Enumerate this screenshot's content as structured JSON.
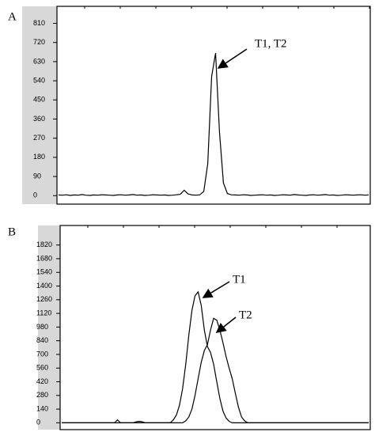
{
  "chart_data": [
    {
      "type": "line",
      "label": "A",
      "annotations": [
        "T1, T2"
      ],
      "ylim": [
        -40,
        890
      ],
      "yticks": [
        0,
        90,
        180,
        270,
        360,
        450,
        540,
        630,
        720,
        810
      ],
      "series": [
        {
          "color": "#000000",
          "values": [
            3,
            2,
            4,
            1,
            3,
            2,
            5,
            2,
            1,
            3,
            2,
            4,
            3,
            2,
            1,
            3,
            4,
            2,
            3,
            5,
            2,
            3,
            1,
            2,
            4,
            3,
            2,
            3,
            1,
            2,
            4,
            6,
            25,
            8,
            3,
            2,
            4,
            20,
            150,
            560,
            670,
            300,
            60,
            10,
            4,
            3,
            2,
            4,
            3,
            1,
            2,
            3,
            4,
            2,
            3,
            1,
            2,
            4,
            3,
            2,
            5,
            3,
            2,
            1,
            3,
            4,
            2,
            3,
            5,
            2,
            3,
            1,
            2,
            4,
            3,
            2,
            3,
            4,
            2,
            3
          ]
        }
      ]
    },
    {
      "type": "line",
      "label": "B",
      "annotations": [
        "T1",
        "T2"
      ],
      "ylim": [
        -70,
        2020
      ],
      "yticks": [
        0,
        140,
        280,
        420,
        560,
        700,
        840,
        980,
        1120,
        1260,
        1400,
        1540,
        1680,
        1820
      ],
      "series": [
        {
          "color": "#000000",
          "values": [
            0,
            0,
            0,
            0,
            0,
            0,
            0,
            0,
            0,
            0,
            0,
            0,
            0,
            0,
            0,
            0,
            0,
            0,
            30,
            0,
            0,
            0,
            0,
            0,
            10,
            15,
            10,
            0,
            0,
            0,
            0,
            0,
            0,
            0,
            0,
            0,
            30,
            80,
            180,
            350,
            600,
            900,
            1150,
            1300,
            1340,
            1200,
            950,
            780,
            720,
            600,
            420,
            250,
            120,
            50,
            15,
            0,
            0,
            0,
            0,
            0,
            0,
            0,
            0,
            0,
            0,
            0,
            0,
            0,
            0,
            0,
            0,
            0,
            0,
            0,
            0,
            0,
            0,
            0,
            0,
            0,
            0,
            0,
            0,
            0,
            0,
            0,
            0,
            0,
            0,
            0,
            0,
            0,
            0,
            0,
            0,
            0,
            0,
            0,
            0,
            0
          ]
        },
        {
          "color": "#000000",
          "values": [
            0,
            0,
            0,
            0,
            0,
            0,
            0,
            0,
            0,
            0,
            0,
            0,
            0,
            0,
            0,
            0,
            0,
            0,
            0,
            0,
            0,
            0,
            0,
            0,
            0,
            0,
            0,
            0,
            0,
            0,
            0,
            0,
            0,
            0,
            0,
            0,
            0,
            0,
            0,
            0,
            20,
            60,
            140,
            280,
            450,
            620,
            740,
            800,
            950,
            1070,
            1050,
            950,
            820,
            680,
            560,
            450,
            300,
            160,
            60,
            20,
            0,
            0,
            0,
            0,
            0,
            0,
            0,
            0,
            0,
            0,
            0,
            0,
            0,
            0,
            0,
            0,
            0,
            0,
            0,
            0,
            0,
            0,
            0,
            0,
            0,
            0,
            0,
            0,
            0,
            0,
            0,
            0,
            0,
            0,
            0,
            0,
            0,
            0,
            0,
            0
          ]
        }
      ]
    }
  ]
}
